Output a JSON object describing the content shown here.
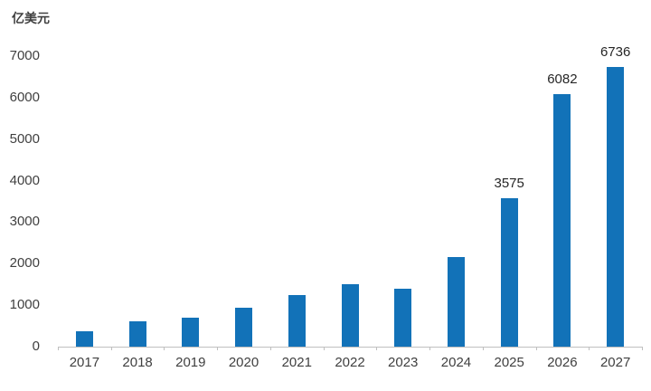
{
  "chart_data": {
    "type": "bar",
    "title": "",
    "ylabel": "亿美元",
    "xlabel": "",
    "categories": [
      "2017",
      "2018",
      "2019",
      "2020",
      "2021",
      "2022",
      "2023",
      "2024",
      "2025",
      "2026",
      "2027"
    ],
    "values": [
      370,
      620,
      690,
      930,
      1250,
      1500,
      1390,
      2160,
      3575,
      6082,
      6736
    ],
    "data_labels": [
      "",
      "",
      "",
      "",
      "",
      "",
      "",
      "",
      "3575",
      "6082",
      "6736"
    ],
    "ylim": [
      0,
      7000
    ],
    "ytick_step": 1000,
    "grid": false,
    "legend": "none",
    "bar_color": "#1272B8",
    "axis_color": "#bfbfbf",
    "text_color": "#404040",
    "label_color": "#262626"
  }
}
